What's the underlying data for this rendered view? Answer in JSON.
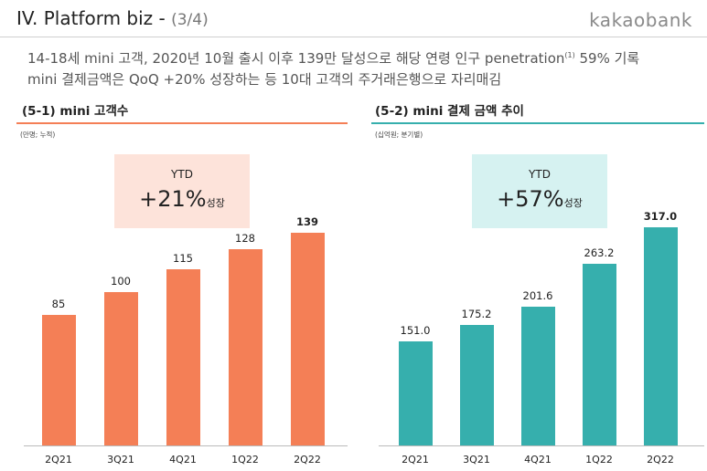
{
  "header": {
    "title": "IV. Platform biz - ",
    "page": "(3/4)",
    "brand": "kakaobank"
  },
  "subtitle": {
    "line1_text": "14-18세 mini 고객, 2020년 10월 출시 이후 139만 달성으로 해당 연령 인구 penetration",
    "line1_note": "(1)",
    "line1_end": " 59% 기록",
    "line2": "mini 결제금액은 QoQ +20% 성장하는 등 10대 고객의 주거래은행으로 자리매김"
  },
  "colors": {
    "orange": "#F47F56",
    "orange_light": "#FDE3DA",
    "teal": "#36AFAD",
    "teal_light": "#D6F2F1",
    "divider": "#bbbbbb"
  },
  "chart_data": [
    {
      "type": "bar",
      "title": "(5-1) mini 고객수",
      "unit": "(만명; 누적)",
      "callout": {
        "label": "YTD",
        "value": "+21%",
        "suffix": "성장"
      },
      "categories": [
        "2Q21",
        "3Q21",
        "4Q21",
        "1Q22",
        "2Q22"
      ],
      "values": [
        85,
        100,
        115,
        128,
        139
      ],
      "value_labels": [
        "85",
        "100",
        "115",
        "128",
        "139"
      ],
      "emphasized_last": true,
      "color": "#F47F56",
      "ylim": [
        0,
        155
      ]
    },
    {
      "type": "bar",
      "title": "(5-2) mini 결제 금액 추이",
      "unit": "(십억원; 분기별)",
      "callout": {
        "label": "YTD",
        "value": "+57%",
        "suffix": "성장"
      },
      "categories": [
        "2Q21",
        "3Q21",
        "4Q21",
        "1Q22",
        "2Q22"
      ],
      "values": [
        151.0,
        175.2,
        201.6,
        263.2,
        317.0
      ],
      "value_labels": [
        "151.0",
        "175.2",
        "201.6",
        "263.2",
        "317.0"
      ],
      "emphasized_last": true,
      "color": "#36AFAD",
      "ylim": [
        0,
        355
      ]
    }
  ]
}
